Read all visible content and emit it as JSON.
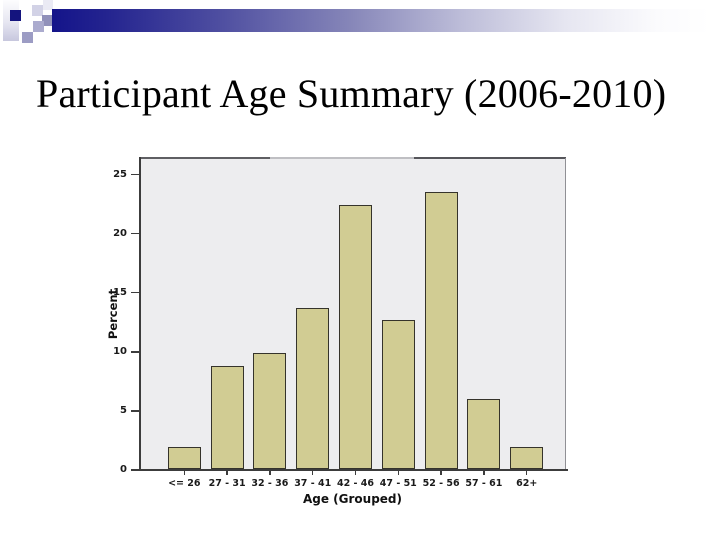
{
  "slide": {
    "title": "Participant Age Summary (2006-2010)"
  },
  "theme": {
    "accent_navy": "#14147e",
    "accent_bar_start": "#14148a",
    "accent_bar_end": "#ffffff"
  },
  "chart_data": {
    "type": "bar",
    "title": "",
    "categories": [
      "<= 26",
      "27 - 31",
      "32 - 36",
      "37 - 41",
      "42 - 46",
      "47 - 51",
      "52 - 56",
      "57 - 61",
      "62+"
    ],
    "values": [
      1.9,
      8.7,
      9.8,
      13.6,
      22.3,
      12.6,
      23.4,
      5.9,
      1.9
    ],
    "xlabel": "Age (Grouped)",
    "ylabel": "Percent",
    "yticks": [
      0,
      5,
      10,
      15,
      20,
      25
    ],
    "ylim": [
      0,
      26.4
    ],
    "grid": false,
    "legend": "none",
    "bar_color": "#d1cc93",
    "bar_border_color": "#35332b",
    "plot_bg_color": "#ededef"
  }
}
